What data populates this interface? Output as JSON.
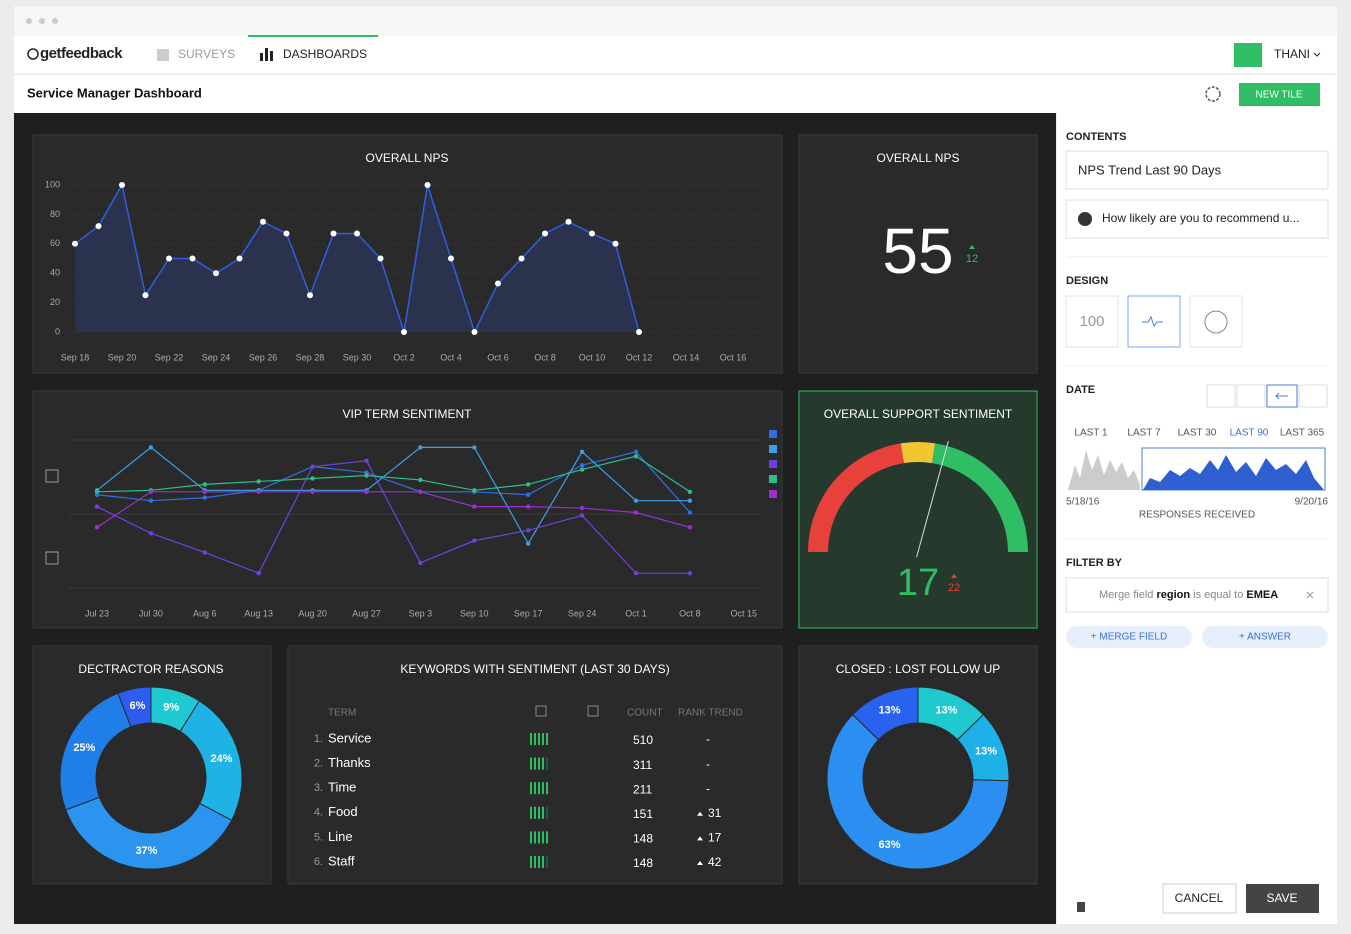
{
  "nav": {
    "logo": "getfeedback",
    "surveys": "SURVEYS",
    "dashboards": "DASHBOARDS",
    "user": "THANI"
  },
  "header": {
    "title": "Service Manager Dashboard",
    "new_tile": "NEW TILE"
  },
  "chart_data": [
    {
      "type": "line",
      "title": "OVERALL NPS",
      "color": "#2f5fe0",
      "categories": [
        "Sep 18",
        null,
        "Sep 20",
        null,
        "Sep 22",
        null,
        "Sep 24",
        null,
        "Sep 26",
        null,
        "Sep 28",
        null,
        "Sep 30",
        null,
        "Oct 2",
        null,
        "Oct 4",
        null,
        "Oct 6",
        null,
        "Oct 8",
        null,
        "Oct 10",
        null,
        "Oct 12",
        null,
        "Oct 14",
        null,
        "Oct 16"
      ],
      "values": [
        60,
        72,
        100,
        25,
        50,
        50,
        40,
        50,
        75,
        67,
        25,
        67,
        67,
        50,
        0,
        100,
        50,
        0,
        33,
        50,
        67,
        75,
        67,
        60,
        0,
        null,
        null,
        null,
        null
      ],
      "ylim": [
        0,
        100
      ],
      "yticks": [
        0,
        20,
        40,
        60,
        80,
        100
      ],
      "grid": true
    },
    {
      "type": "number",
      "title": "OVERALL NPS",
      "value": 55,
      "change": 12
    },
    {
      "type": "line",
      "title": "VIP TERM SENTIMENT",
      "categories": [
        "Jul 23",
        "Jul 30",
        "Aug 6",
        "Aug 13",
        "Aug 20",
        "Aug 27",
        "Sep 3",
        "Sep 10",
        "Sep 17",
        "Sep 24",
        "Oct 1",
        "Oct 8",
        "Oct 15"
      ],
      "ylim": [
        0,
        100
      ],
      "series": [
        {
          "color": "#2f6fe0",
          "values": [
            63,
            59,
            61,
            66,
            82,
            78,
            65,
            65,
            63,
            83,
            92,
            51,
            null
          ]
        },
        {
          "color": "#3ba0e8",
          "values": [
            66,
            95,
            66,
            66,
            66,
            66,
            95,
            95,
            30,
            92,
            59,
            59,
            null
          ]
        },
        {
          "color": "#7040e0",
          "values": [
            55,
            37,
            24,
            10,
            82,
            86,
            17,
            32,
            39,
            49,
            10,
            10,
            null
          ]
        },
        {
          "color": "#2bbf8a",
          "values": [
            65,
            66,
            70,
            72,
            74,
            76,
            73,
            66,
            70,
            80,
            89,
            65,
            null
          ]
        },
        {
          "color": "#9a30d0",
          "values": [
            41,
            65,
            65,
            65,
            65,
            65,
            65,
            55,
            55,
            54,
            51,
            41,
            null
          ]
        }
      ]
    },
    {
      "type": "gauge",
      "title": "OVERALL SUPPORT SENTIMENT",
      "value": 17,
      "change": 22,
      "ylim": [
        -100,
        100
      ],
      "bands": [
        {
          "from": -100,
          "to": -10,
          "color": "#e8403a"
        },
        {
          "from": -10,
          "to": 10,
          "color": "#f2c631"
        },
        {
          "from": 10,
          "to": 100,
          "color": "#2fbe63"
        }
      ]
    },
    {
      "type": "donut",
      "title": "DECTRACTOR REASONS",
      "values": [
        9,
        24,
        37,
        25,
        6
      ],
      "value_labels": [
        "9%",
        "24%",
        "37%",
        "25%",
        "6%"
      ],
      "colors": [
        "#1ec9d0",
        "#1fb2e4",
        "#2a94ee",
        "#1f7ee8",
        "#2d5cf0"
      ]
    },
    {
      "type": "donut",
      "title": "CLOSED : LOST FOLLOW UP",
      "values": [
        13,
        13,
        63,
        13
      ],
      "value_labels": [
        "13%",
        "13%",
        "63%",
        "13%"
      ],
      "colors": [
        "#1ec9d0",
        "#1fb0e8",
        "#2a8ff0",
        "#2a62f0"
      ]
    }
  ],
  "keywords": {
    "title": "KEYWORDS WITH SENTIMENT (LAST 30 DAYS)",
    "columns": {
      "term": "TERM",
      "count": "COUNT",
      "trend": "RANK TREND"
    },
    "rows": [
      {
        "rank": "1.",
        "term": "Service",
        "count": 510,
        "trend": "-"
      },
      {
        "rank": "2.",
        "term": "Thanks",
        "count": 311,
        "trend": "-"
      },
      {
        "rank": "3.",
        "term": "Time",
        "count": 211,
        "trend": "-"
      },
      {
        "rank": "4.",
        "term": "Food",
        "count": 151,
        "trend": 31
      },
      {
        "rank": "5.",
        "term": "Line",
        "count": 148,
        "trend": 17
      },
      {
        "rank": "6.",
        "term": "Staff",
        "count": 148,
        "trend": 42
      }
    ]
  },
  "panel": {
    "contents": "CONTENTS",
    "name": "NPS Trend Last 90 Days",
    "question": "How likely are you to recommend u...",
    "design": "DESIGN",
    "design_number": "100",
    "date": "DATE",
    "ranges": [
      "LAST 1",
      "LAST 7",
      "LAST 30",
      "LAST 90",
      "LAST 365"
    ],
    "start": "5/18/16",
    "end": "9/20/16",
    "responses": "RESPONSES RECEIVED",
    "filter_by": "FILTER BY",
    "filter": [
      "Merge field",
      "region",
      "is equal to",
      "EMEA"
    ],
    "merge_field": "+ MERGE FIELD",
    "answer": "+ ANSWER",
    "cancel": "CANCEL",
    "save": "SAVE"
  }
}
